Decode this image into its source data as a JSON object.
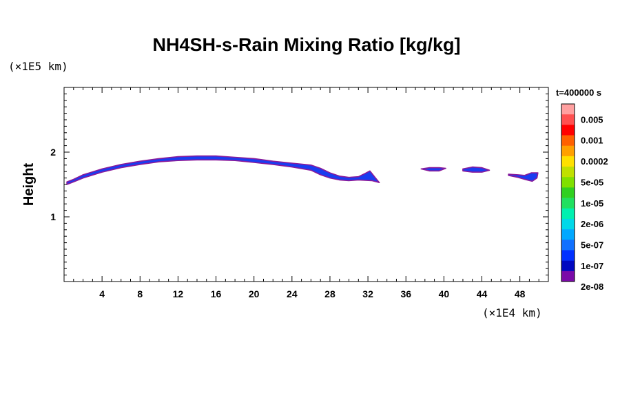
{
  "chart_data": {
    "type": "contour",
    "title": "NH4SH-s-Rain Mixing Ratio [kg/kg]",
    "y_unit": "(×1E5 km)",
    "x_unit": "(×1E4 km)",
    "ylabel": "Height",
    "time_label": "t=400000 s",
    "xlim": [
      0,
      51
    ],
    "ylim": [
      0,
      3
    ],
    "x_ticks": [
      4,
      8,
      12,
      16,
      20,
      24,
      28,
      32,
      36,
      40,
      44,
      48
    ],
    "y_ticks": [
      1,
      2
    ],
    "colorbar": {
      "labels": [
        "0.005",
        "0.001",
        "0.0002",
        "5e-05",
        "1e-05",
        "2e-06",
        "5e-07",
        "1e-07",
        "2e-08"
      ],
      "colors": [
        "#ffa0a0",
        "#ff5050",
        "#ff0000",
        "#ff6000",
        "#ffa000",
        "#ffe000",
        "#c0e000",
        "#80e000",
        "#30d020",
        "#20e060",
        "#00f0b0",
        "#00d8e8",
        "#00a8ff",
        "#1070ff",
        "#0030ff",
        "#0008c0",
        "#7a0aa8"
      ]
    },
    "series": [
      {
        "upper": [
          [
            0.3,
            1.54
          ],
          [
            1,
            1.58
          ],
          [
            2,
            1.65
          ],
          [
            4,
            1.74
          ],
          [
            6,
            1.81
          ],
          [
            8,
            1.86
          ],
          [
            10,
            1.9
          ],
          [
            12,
            1.93
          ],
          [
            14,
            1.94
          ],
          [
            16,
            1.94
          ],
          [
            18,
            1.92
          ],
          [
            20,
            1.9
          ],
          [
            22,
            1.86
          ],
          [
            24,
            1.83
          ],
          [
            26,
            1.8
          ],
          [
            27,
            1.75
          ],
          [
            28,
            1.68
          ],
          [
            29,
            1.63
          ],
          [
            30,
            1.61
          ],
          [
            31,
            1.62
          ],
          [
            31.7,
            1.67
          ],
          [
            32.2,
            1.71
          ],
          [
            32.7,
            1.62
          ],
          [
            33.2,
            1.53
          ]
        ],
        "lower": [
          [
            33.2,
            1.53
          ],
          [
            32.4,
            1.56
          ],
          [
            31,
            1.57
          ],
          [
            30,
            1.56
          ],
          [
            29,
            1.57
          ],
          [
            28,
            1.6
          ],
          [
            27,
            1.65
          ],
          [
            26,
            1.72
          ],
          [
            24,
            1.77
          ],
          [
            22,
            1.81
          ],
          [
            20,
            1.84
          ],
          [
            18,
            1.87
          ],
          [
            16,
            1.88
          ],
          [
            14,
            1.88
          ],
          [
            12,
            1.87
          ],
          [
            10,
            1.85
          ],
          [
            8,
            1.81
          ],
          [
            6,
            1.76
          ],
          [
            4,
            1.69
          ],
          [
            2,
            1.6
          ],
          [
            1,
            1.54
          ],
          [
            0.3,
            1.5
          ]
        ]
      },
      {
        "upper": [
          [
            37.6,
            1.74
          ],
          [
            38.5,
            1.76
          ],
          [
            39.5,
            1.76
          ],
          [
            40.2,
            1.75
          ]
        ],
        "lower": [
          [
            40.2,
            1.75
          ],
          [
            39.5,
            1.71
          ],
          [
            38.5,
            1.71
          ],
          [
            37.6,
            1.74
          ]
        ]
      },
      {
        "upper": [
          [
            42,
            1.74
          ],
          [
            43,
            1.77
          ],
          [
            44,
            1.76
          ],
          [
            44.8,
            1.72
          ]
        ],
        "lower": [
          [
            44.8,
            1.72
          ],
          [
            44,
            1.69
          ],
          [
            43,
            1.69
          ],
          [
            42,
            1.71
          ]
        ]
      },
      {
        "upper": [
          [
            46.8,
            1.66
          ],
          [
            47.8,
            1.65
          ],
          [
            48.5,
            1.64
          ],
          [
            49.2,
            1.68
          ],
          [
            49.9,
            1.68
          ]
        ],
        "lower": [
          [
            49.9,
            1.68
          ],
          [
            49.8,
            1.6
          ],
          [
            49.3,
            1.55
          ],
          [
            48.5,
            1.58
          ],
          [
            47.8,
            1.61
          ],
          [
            46.8,
            1.64
          ]
        ]
      }
    ]
  }
}
